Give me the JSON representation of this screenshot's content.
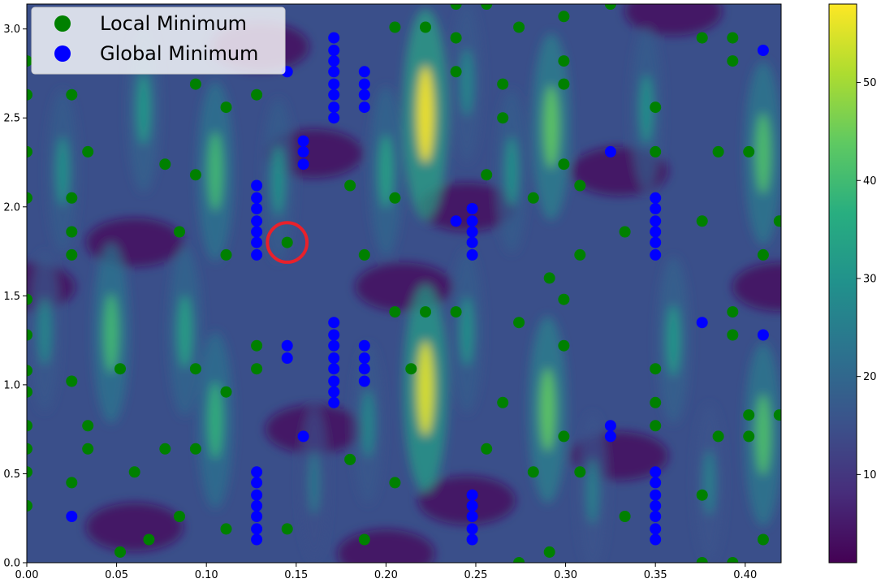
{
  "chart_data": {
    "type": "scatter",
    "background": "heatmap",
    "title": "",
    "xlabel": "",
    "ylabel": "",
    "xlim": [
      0.0,
      0.42
    ],
    "ylim": [
      0.0,
      3.14
    ],
    "xticks": [
      0.0,
      0.05,
      0.1,
      0.15,
      0.2,
      0.25,
      0.3,
      0.35,
      0.4
    ],
    "xtick_labels": [
      "0.00",
      "0.05",
      "0.10",
      "0.15",
      "0.20",
      "0.25",
      "0.30",
      "0.35",
      "0.40"
    ],
    "yticks": [
      0.0,
      0.5,
      1.0,
      1.5,
      2.0,
      2.5,
      3.0
    ],
    "ytick_labels": [
      "0.0",
      "0.5",
      "1.0",
      "1.5",
      "2.0",
      "2.5",
      "3.0"
    ],
    "grid": false,
    "legend_position": "top-left",
    "colormap": "viridis",
    "colorbar": {
      "min": 1,
      "max": 58,
      "ticks": [
        10,
        20,
        30,
        40,
        50
      ],
      "tick_labels": [
        "10",
        "20",
        "30",
        "40",
        "50"
      ]
    },
    "heatmap_peaks": [
      {
        "x": 0.222,
        "y": 2.52,
        "value": 58
      },
      {
        "x": 0.222,
        "y": 0.98,
        "value": 56
      },
      {
        "x": 0.292,
        "y": 2.45,
        "value": 44
      },
      {
        "x": 0.29,
        "y": 0.86,
        "value": 44
      },
      {
        "x": 0.105,
        "y": 2.2,
        "value": 40
      },
      {
        "x": 0.105,
        "y": 0.8,
        "value": 38
      },
      {
        "x": 0.047,
        "y": 1.29,
        "value": 40
      },
      {
        "x": 0.41,
        "y": 2.3,
        "value": 42
      },
      {
        "x": 0.41,
        "y": 0.72,
        "value": 42
      },
      {
        "x": 0.27,
        "y": 2.2,
        "value": 30
      },
      {
        "x": 0.19,
        "y": 0.78,
        "value": 28
      },
      {
        "x": 0.088,
        "y": 1.3,
        "value": 34
      },
      {
        "x": 0.065,
        "y": 2.55,
        "value": 32
      },
      {
        "x": 0.14,
        "y": 2.15,
        "value": 30
      },
      {
        "x": 0.2,
        "y": 2.2,
        "value": 34
      },
      {
        "x": 0.36,
        "y": 1.25,
        "value": 32
      },
      {
        "x": 0.345,
        "y": 2.55,
        "value": 30
      },
      {
        "x": 0.01,
        "y": 1.3,
        "value": 28
      },
      {
        "x": 0.02,
        "y": 2.2,
        "value": 30
      },
      {
        "x": 0.38,
        "y": 0.45,
        "value": 26
      },
      {
        "x": 0.16,
        "y": 0.45,
        "value": 24
      },
      {
        "x": 0.315,
        "y": 0.4,
        "value": 26
      },
      {
        "x": 0.245,
        "y": 1.3,
        "value": 30
      },
      {
        "x": 0.245,
        "y": 2.7,
        "value": 28
      }
    ],
    "series": [
      {
        "name": "Local Minimum",
        "color": "#008000",
        "points": [
          [
            0.0,
            2.82
          ],
          [
            0.0,
            2.63
          ],
          [
            0.0,
            2.31
          ],
          [
            0.0,
            2.05
          ],
          [
            0.0,
            1.48
          ],
          [
            0.0,
            1.28
          ],
          [
            0.0,
            1.08
          ],
          [
            0.0,
            0.96
          ],
          [
            0.0,
            0.77
          ],
          [
            0.0,
            0.64
          ],
          [
            0.0,
            0.51
          ],
          [
            0.0,
            0.32
          ],
          [
            0.025,
            2.63
          ],
          [
            0.025,
            2.05
          ],
          [
            0.025,
            1.86
          ],
          [
            0.025,
            1.73
          ],
          [
            0.025,
            1.02
          ],
          [
            0.025,
            0.45
          ],
          [
            0.034,
            2.31
          ],
          [
            0.034,
            0.77
          ],
          [
            0.034,
            0.64
          ],
          [
            0.052,
            1.09
          ],
          [
            0.052,
            0.06
          ],
          [
            0.06,
            0.51
          ],
          [
            0.068,
            0.13
          ],
          [
            0.077,
            2.24
          ],
          [
            0.077,
            0.64
          ],
          [
            0.085,
            1.86
          ],
          [
            0.085,
            0.26
          ],
          [
            0.094,
            2.69
          ],
          [
            0.094,
            2.18
          ],
          [
            0.094,
            1.09
          ],
          [
            0.094,
            0.64
          ],
          [
            0.111,
            2.56
          ],
          [
            0.111,
            1.73
          ],
          [
            0.111,
            0.96
          ],
          [
            0.111,
            0.19
          ],
          [
            0.128,
            2.63
          ],
          [
            0.128,
            1.22
          ],
          [
            0.128,
            1.09
          ],
          [
            0.145,
            1.8
          ],
          [
            0.145,
            0.19
          ],
          [
            0.18,
            2.12
          ],
          [
            0.18,
            0.58
          ],
          [
            0.188,
            1.73
          ],
          [
            0.188,
            0.13
          ],
          [
            0.205,
            3.01
          ],
          [
            0.205,
            2.05
          ],
          [
            0.205,
            1.41
          ],
          [
            0.205,
            0.45
          ],
          [
            0.214,
            1.09
          ],
          [
            0.222,
            3.01
          ],
          [
            0.222,
            1.41
          ],
          [
            0.239,
            3.14
          ],
          [
            0.239,
            2.95
          ],
          [
            0.239,
            2.76
          ],
          [
            0.239,
            1.41
          ],
          [
            0.256,
            3.14
          ],
          [
            0.256,
            2.18
          ],
          [
            0.256,
            0.64
          ],
          [
            0.265,
            2.69
          ],
          [
            0.265,
            2.5
          ],
          [
            0.265,
            0.9
          ],
          [
            0.274,
            3.01
          ],
          [
            0.274,
            1.35
          ],
          [
            0.274,
            0.0
          ],
          [
            0.282,
            2.05
          ],
          [
            0.282,
            0.51
          ],
          [
            0.291,
            1.6
          ],
          [
            0.291,
            0.06
          ],
          [
            0.299,
            3.07
          ],
          [
            0.299,
            2.82
          ],
          [
            0.299,
            2.69
          ],
          [
            0.299,
            2.24
          ],
          [
            0.299,
            1.48
          ],
          [
            0.299,
            1.22
          ],
          [
            0.299,
            0.71
          ],
          [
            0.308,
            2.12
          ],
          [
            0.308,
            1.73
          ],
          [
            0.308,
            0.51
          ],
          [
            0.325,
            3.14
          ],
          [
            0.333,
            1.86
          ],
          [
            0.333,
            0.26
          ],
          [
            0.35,
            2.56
          ],
          [
            0.35,
            2.31
          ],
          [
            0.35,
            1.09
          ],
          [
            0.35,
            0.9
          ],
          [
            0.35,
            0.77
          ],
          [
            0.376,
            2.95
          ],
          [
            0.376,
            1.92
          ],
          [
            0.376,
            0.38
          ],
          [
            0.376,
            0.0
          ],
          [
            0.385,
            2.31
          ],
          [
            0.385,
            0.71
          ],
          [
            0.393,
            2.95
          ],
          [
            0.393,
            2.82
          ],
          [
            0.393,
            1.41
          ],
          [
            0.393,
            1.28
          ],
          [
            0.393,
            0.0
          ],
          [
            0.402,
            2.31
          ],
          [
            0.402,
            0.83
          ],
          [
            0.402,
            0.71
          ],
          [
            0.41,
            1.73
          ],
          [
            0.41,
            0.13
          ],
          [
            0.419,
            1.92
          ],
          [
            0.419,
            0.83
          ]
        ]
      },
      {
        "name": "Global Minimum",
        "color": "#0000ff",
        "points": [
          [
            0.145,
            2.76
          ],
          [
            0.154,
            2.37
          ],
          [
            0.154,
            2.31
          ],
          [
            0.154,
            2.24
          ],
          [
            0.171,
            2.95
          ],
          [
            0.171,
            2.88
          ],
          [
            0.171,
            2.82
          ],
          [
            0.171,
            2.76
          ],
          [
            0.171,
            2.69
          ],
          [
            0.171,
            2.63
          ],
          [
            0.171,
            2.56
          ],
          [
            0.171,
            2.5
          ],
          [
            0.188,
            2.76
          ],
          [
            0.188,
            2.69
          ],
          [
            0.188,
            2.63
          ],
          [
            0.188,
            2.56
          ],
          [
            0.128,
            2.12
          ],
          [
            0.128,
            2.05
          ],
          [
            0.128,
            1.99
          ],
          [
            0.128,
            1.92
          ],
          [
            0.128,
            1.86
          ],
          [
            0.128,
            1.8
          ],
          [
            0.128,
            1.73
          ],
          [
            0.239,
            1.92
          ],
          [
            0.248,
            1.99
          ],
          [
            0.248,
            1.92
          ],
          [
            0.248,
            1.86
          ],
          [
            0.248,
            1.8
          ],
          [
            0.248,
            1.73
          ],
          [
            0.325,
            2.31
          ],
          [
            0.35,
            2.05
          ],
          [
            0.35,
            1.99
          ],
          [
            0.35,
            1.92
          ],
          [
            0.35,
            1.86
          ],
          [
            0.35,
            1.8
          ],
          [
            0.35,
            1.73
          ],
          [
            0.41,
            2.88
          ],
          [
            0.145,
            1.22
          ],
          [
            0.145,
            1.15
          ],
          [
            0.171,
            1.35
          ],
          [
            0.171,
            1.28
          ],
          [
            0.171,
            1.22
          ],
          [
            0.171,
            1.15
          ],
          [
            0.171,
            1.09
          ],
          [
            0.171,
            1.02
          ],
          [
            0.171,
            0.96
          ],
          [
            0.171,
            0.9
          ],
          [
            0.188,
            1.22
          ],
          [
            0.188,
            1.15
          ],
          [
            0.188,
            1.09
          ],
          [
            0.188,
            1.02
          ],
          [
            0.154,
            0.71
          ],
          [
            0.325,
            0.77
          ],
          [
            0.325,
            0.71
          ],
          [
            0.376,
            1.35
          ],
          [
            0.41,
            1.28
          ],
          [
            0.025,
            0.26
          ],
          [
            0.128,
            0.51
          ],
          [
            0.128,
            0.45
          ],
          [
            0.128,
            0.38
          ],
          [
            0.128,
            0.32
          ],
          [
            0.128,
            0.26
          ],
          [
            0.128,
            0.19
          ],
          [
            0.128,
            0.13
          ],
          [
            0.248,
            0.38
          ],
          [
            0.248,
            0.32
          ],
          [
            0.248,
            0.26
          ],
          [
            0.248,
            0.19
          ],
          [
            0.248,
            0.13
          ],
          [
            0.35,
            0.51
          ],
          [
            0.35,
            0.45
          ],
          [
            0.35,
            0.38
          ],
          [
            0.35,
            0.32
          ],
          [
            0.35,
            0.26
          ],
          [
            0.35,
            0.19
          ],
          [
            0.35,
            0.13
          ]
        ]
      }
    ],
    "annotations": [
      {
        "type": "circle",
        "x": 0.145,
        "y": 1.8,
        "radius_x": 0.011,
        "color": "#e8212b"
      }
    ]
  }
}
